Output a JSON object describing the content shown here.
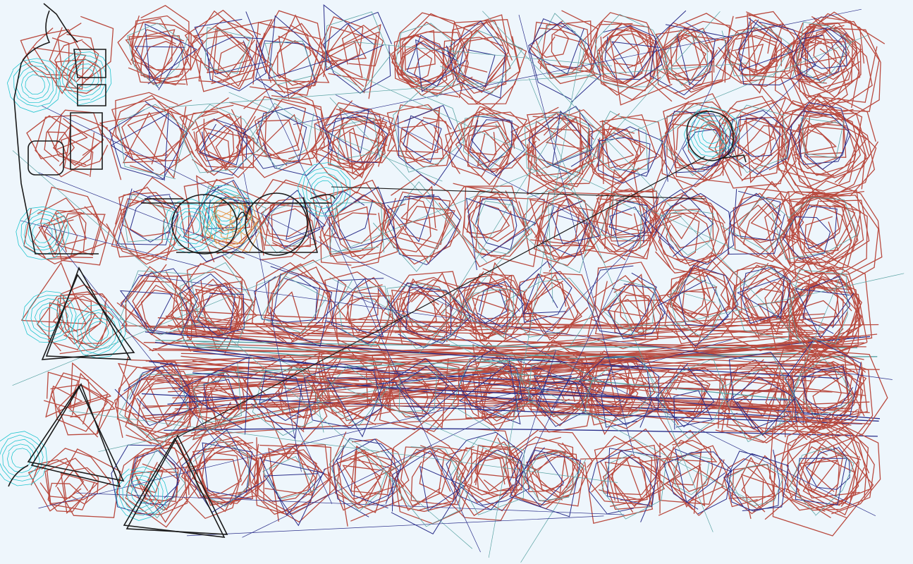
{
  "canvas": {
    "background_color": "#eef6fc",
    "description_label": "sketch canvas"
  },
  "palette": {
    "red": "#b94a3f",
    "navy": "#2b2f8a",
    "cyan": "#22c5cf",
    "black": "#1a1a1a",
    "teal": "#5aa3a3",
    "orange": "#e59a4a"
  },
  "drawing": {
    "stroke_groups": [
      "red-scribbles",
      "navy-scribbles",
      "cyan-rings",
      "black-outlines"
    ],
    "highlighted_shapes": [
      "goggles-shape",
      "triangle-large",
      "triangle-small",
      "figure-shape",
      "circle-upper-right",
      "diagonal-line"
    ]
  }
}
